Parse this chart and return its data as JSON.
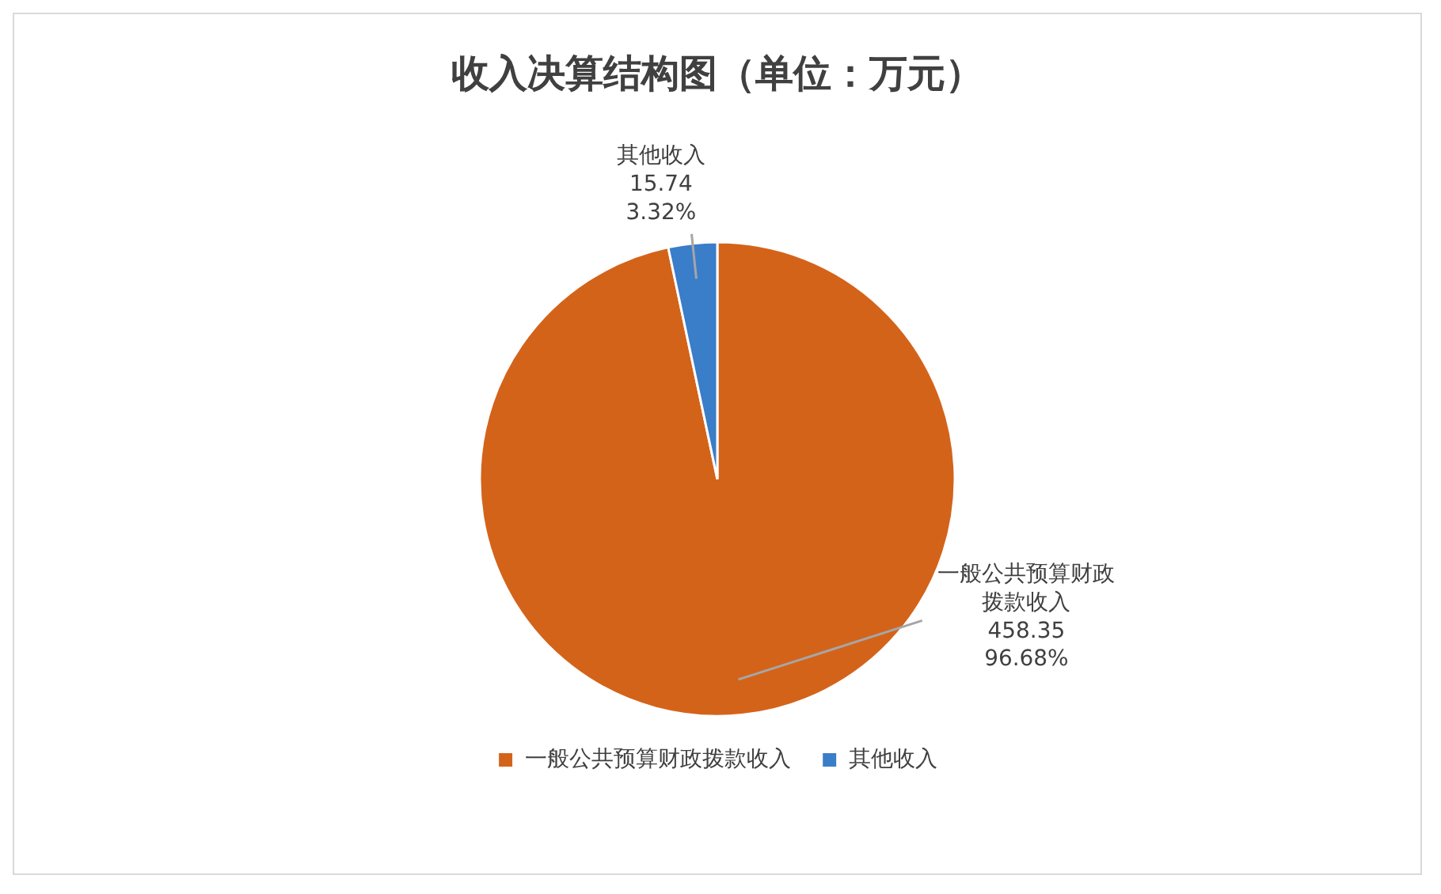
{
  "chart_data": {
    "type": "pie",
    "title": "收入决算结构图（单位：万元）",
    "categories": [
      "一般公共预算财政拨款收入",
      "其他收入"
    ],
    "values": [
      458.35,
      15.74
    ],
    "colors": [
      "#d4631a",
      "#3a7dc8"
    ],
    "data_labels": true,
    "value_labels": [
      "458.35\n96.68%",
      "15.74\n3.32%"
    ],
    "legend": "bottom"
  }
}
